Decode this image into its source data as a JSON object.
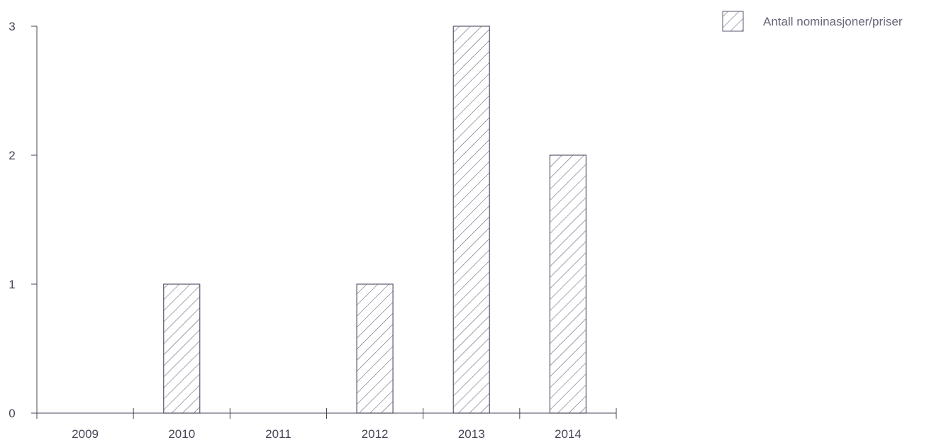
{
  "chart_data": {
    "type": "bar",
    "categories": [
      "2009",
      "2010",
      "2011",
      "2012",
      "2013",
      "2014"
    ],
    "series": [
      {
        "name": "Antall nominasjoner/priser",
        "values": [
          0,
          1,
          0,
          1,
          3,
          2
        ]
      }
    ],
    "ylim": [
      0,
      3
    ],
    "yticks": [
      "0",
      "1",
      "2",
      "3"
    ],
    "grid": false,
    "legend_position": "top-right",
    "bar_fill": "hatched",
    "colors": {
      "bar_stroke": "#5e5670",
      "axis": "#4a4458",
      "text": "#4a4458"
    }
  }
}
